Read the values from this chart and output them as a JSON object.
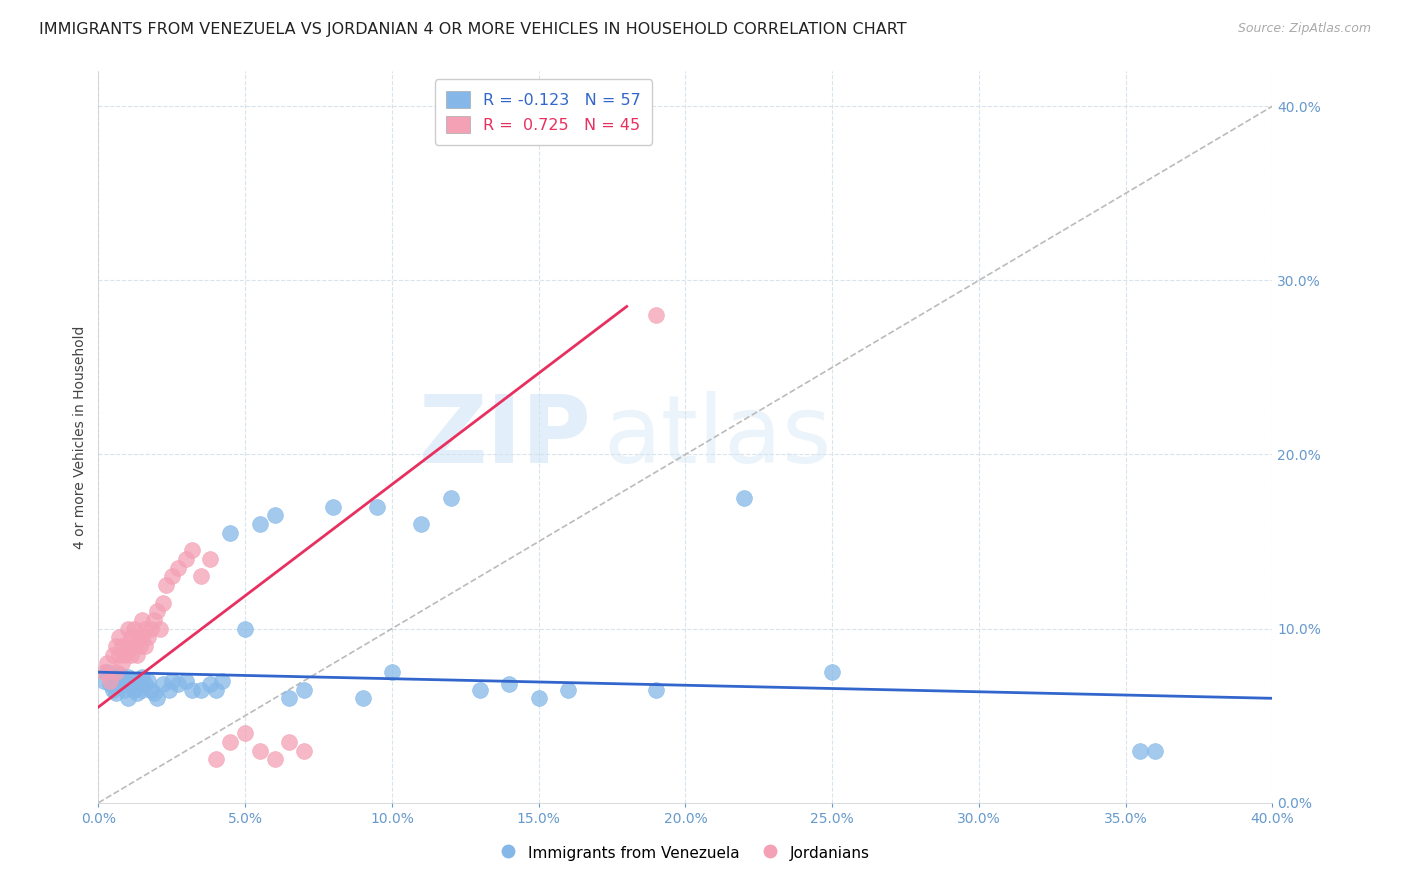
{
  "title": "IMMIGRANTS FROM VENEZUELA VS JORDANIAN 4 OR MORE VEHICLES IN HOUSEHOLD CORRELATION CHART",
  "source": "Source: ZipAtlas.com",
  "ylabel": "4 or more Vehicles in Household",
  "xmin": 0.0,
  "xmax": 0.4,
  "ymin": 0.0,
  "ymax": 0.42,
  "xticks": [
    0.0,
    0.05,
    0.1,
    0.15,
    0.2,
    0.25,
    0.3,
    0.35,
    0.4
  ],
  "yticks": [
    0.0,
    0.1,
    0.2,
    0.3,
    0.4
  ],
  "blue_color": "#85b8e8",
  "pink_color": "#f4a0b5",
  "blue_line_color": "#3366cc",
  "pink_line_color": "#e83060",
  "diagonal_color": "#bbbbbb",
  "watermark_zip": "ZIP",
  "watermark_atlas": "atlas",
  "legend_blue_r": "-0.123",
  "legend_blue_n": "57",
  "legend_pink_r": "0.725",
  "legend_pink_n": "45",
  "legend_label_blue": "Immigrants from Venezuela",
  "legend_label_pink": "Jordanians",
  "blue_scatter_x": [
    0.002,
    0.003,
    0.004,
    0.005,
    0.005,
    0.006,
    0.007,
    0.007,
    0.008,
    0.008,
    0.009,
    0.009,
    0.01,
    0.01,
    0.011,
    0.012,
    0.012,
    0.013,
    0.014,
    0.015,
    0.015,
    0.016,
    0.017,
    0.018,
    0.019,
    0.02,
    0.022,
    0.024,
    0.025,
    0.027,
    0.03,
    0.032,
    0.035,
    0.038,
    0.04,
    0.042,
    0.045,
    0.05,
    0.055,
    0.06,
    0.065,
    0.07,
    0.08,
    0.09,
    0.095,
    0.1,
    0.11,
    0.12,
    0.13,
    0.14,
    0.15,
    0.16,
    0.19,
    0.22,
    0.25,
    0.355,
    0.36
  ],
  "blue_scatter_y": [
    0.07,
    0.075,
    0.068,
    0.072,
    0.065,
    0.063,
    0.07,
    0.074,
    0.068,
    0.072,
    0.065,
    0.07,
    0.072,
    0.06,
    0.068,
    0.07,
    0.065,
    0.063,
    0.068,
    0.065,
    0.072,
    0.068,
    0.07,
    0.065,
    0.063,
    0.06,
    0.068,
    0.065,
    0.07,
    0.068,
    0.07,
    0.065,
    0.065,
    0.068,
    0.065,
    0.07,
    0.155,
    0.1,
    0.16,
    0.165,
    0.06,
    0.065,
    0.17,
    0.06,
    0.17,
    0.075,
    0.16,
    0.175,
    0.065,
    0.068,
    0.06,
    0.065,
    0.065,
    0.175,
    0.075,
    0.03,
    0.03
  ],
  "pink_scatter_x": [
    0.002,
    0.003,
    0.004,
    0.005,
    0.006,
    0.006,
    0.007,
    0.007,
    0.008,
    0.008,
    0.009,
    0.01,
    0.01,
    0.011,
    0.011,
    0.012,
    0.012,
    0.013,
    0.013,
    0.014,
    0.015,
    0.015,
    0.016,
    0.016,
    0.017,
    0.018,
    0.019,
    0.02,
    0.021,
    0.022,
    0.023,
    0.025,
    0.027,
    0.03,
    0.032,
    0.035,
    0.038,
    0.04,
    0.045,
    0.05,
    0.055,
    0.06,
    0.065,
    0.07,
    0.19
  ],
  "pink_scatter_y": [
    0.075,
    0.08,
    0.07,
    0.085,
    0.075,
    0.09,
    0.085,
    0.095,
    0.08,
    0.09,
    0.085,
    0.09,
    0.1,
    0.085,
    0.095,
    0.09,
    0.1,
    0.085,
    0.095,
    0.09,
    0.095,
    0.105,
    0.09,
    0.1,
    0.095,
    0.1,
    0.105,
    0.11,
    0.1,
    0.115,
    0.125,
    0.13,
    0.135,
    0.14,
    0.145,
    0.13,
    0.14,
    0.025,
    0.035,
    0.04,
    0.03,
    0.025,
    0.035,
    0.03,
    0.28
  ],
  "title_fontsize": 11.5,
  "axis_label_fontsize": 10,
  "tick_fontsize": 10,
  "source_fontsize": 9
}
